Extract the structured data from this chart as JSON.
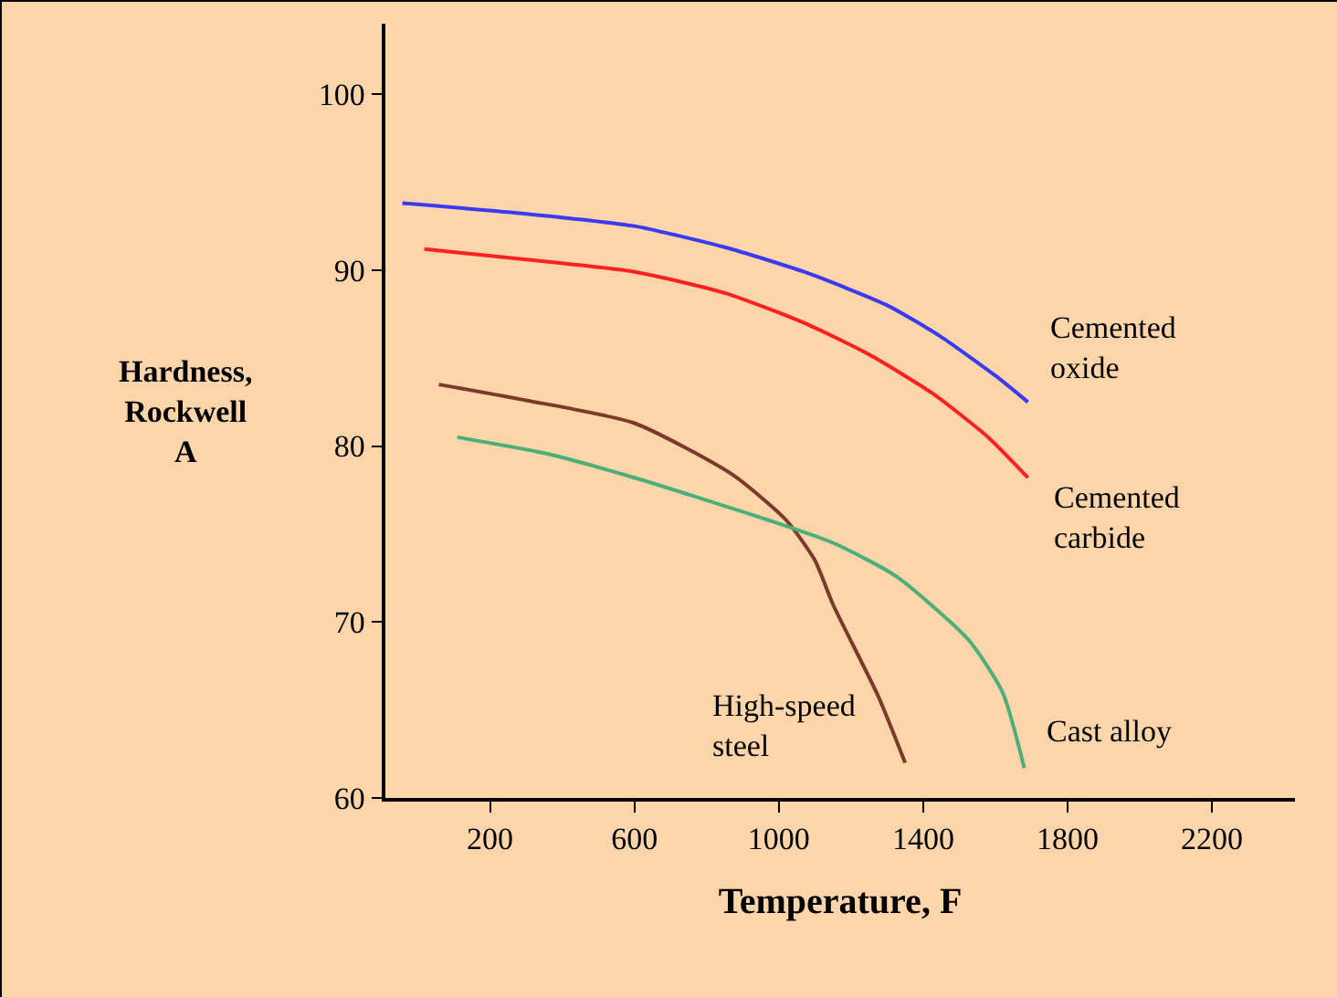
{
  "chart_data": {
    "type": "line",
    "xlabel": "Temperature, F",
    "ylabel": "Hardness, Rockwell A",
    "xlim": [
      -90,
      2430
    ],
    "xticks": [
      200,
      600,
      1000,
      1400,
      1800,
      2200
    ],
    "ylim": [
      60,
      104
    ],
    "yticks": [
      60,
      70,
      80,
      90,
      100
    ],
    "grid": false,
    "legend": false,
    "marker": "none",
    "line_style": "solid",
    "series": [
      {
        "name": "Cemented oxide",
        "color": "#3a3af0",
        "x": [
          -43,
          300,
          600,
          850,
          1070,
          1300,
          1450,
          1600,
          1690
        ],
        "values": [
          93.8,
          93.2,
          92.5,
          91.3,
          89.9,
          88,
          86.2,
          84,
          82.5
        ]
      },
      {
        "name": "Cemented carbide",
        "color": "#ff2020",
        "x": [
          18,
          300,
          600,
          850,
          1070,
          1250,
          1425,
          1580,
          1690
        ],
        "values": [
          91.2,
          90.6,
          89.9,
          88.7,
          87,
          85.2,
          83,
          80.5,
          78.2
        ]
      },
      {
        "name": "High-speed steel",
        "color": "#7b3a2a",
        "x": [
          58,
          300,
          600,
          870,
          1020,
          1100,
          1150,
          1275,
          1350
        ],
        "values": [
          83.5,
          82.6,
          81.3,
          78.4,
          75.8,
          73.5,
          71,
          65.8,
          62
        ]
      },
      {
        "name": "Cast alloy",
        "color": "#4caf7a",
        "x": [
          109,
          350,
          600,
          970,
          1150,
          1325,
          1525,
          1620,
          1680
        ],
        "values": [
          80.5,
          79.6,
          78.2,
          75.8,
          74.5,
          72.6,
          69,
          66,
          61.7
        ]
      }
    ]
  }
}
